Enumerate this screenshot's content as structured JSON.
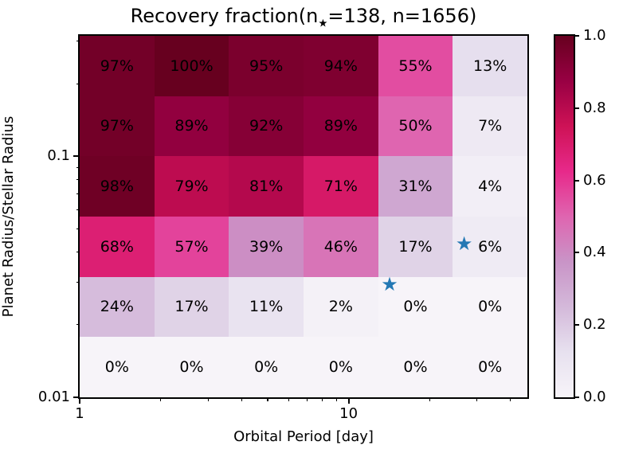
{
  "figure": {
    "background": "#ffffff",
    "text_color": "#000000",
    "title": {
      "prefix": "Recovery fraction(n",
      "subscript": "★",
      "suffix": "=138, n=1656)"
    }
  },
  "chart_data": {
    "type": "heatmap",
    "title": "Recovery fraction(n_★=138, n=1656)",
    "xlabel": "Orbital Period [day]",
    "ylabel": "Planet Radius/Stellar Radius",
    "x_scale": "log",
    "y_scale": "log",
    "x_range": [
      1,
      46.2
    ],
    "y_range": [
      0.01,
      0.3162
    ],
    "grid_shape": [
      6,
      6
    ],
    "column_period_day_edges": [
      1.0,
      1.9,
      3.6,
      6.8,
      12.9,
      24.5,
      46.2
    ],
    "row_radius_ratio_edges_top_to_bottom": [
      0.3162,
      0.1778,
      0.1,
      0.0562,
      0.0316,
      0.0178,
      0.01
    ],
    "values_pct_rows_top_to_bottom": [
      [
        97,
        100,
        95,
        94,
        55,
        13
      ],
      [
        97,
        89,
        92,
        89,
        50,
        7
      ],
      [
        98,
        79,
        81,
        71,
        31,
        4
      ],
      [
        68,
        57,
        39,
        46,
        17,
        6
      ],
      [
        24,
        17,
        11,
        2,
        0,
        0
      ],
      [
        0,
        0,
        0,
        0,
        0,
        0
      ]
    ],
    "cell_labels": [
      [
        "97%",
        "100%",
        "95%",
        "94%",
        "55%",
        "13%"
      ],
      [
        "97%",
        "89%",
        "92%",
        "89%",
        "50%",
        "7%"
      ],
      [
        "98%",
        "79%",
        "81%",
        "71%",
        "31%",
        "4%"
      ],
      [
        "68%",
        "57%",
        "39%",
        "46%",
        "17%",
        "6%"
      ],
      [
        "24%",
        "17%",
        "11%",
        "2%",
        "0%",
        "0%"
      ],
      [
        "0%",
        "0%",
        "0%",
        "0%",
        "0%",
        "0%"
      ]
    ],
    "x_major_ticks": [
      {
        "v": 1,
        "label": "1"
      },
      {
        "v": 10,
        "label": "10"
      }
    ],
    "x_minor_ticks": [
      2,
      3,
      4,
      5,
      6,
      7,
      8,
      9,
      20,
      30,
      40
    ],
    "y_major_ticks": [
      {
        "v": 0.1,
        "label": "0.1"
      },
      {
        "v": 0.01,
        "label": "0.01"
      }
    ],
    "y_minor_ticks": [
      0.02,
      0.03,
      0.04,
      0.05,
      0.06,
      0.07,
      0.08,
      0.09,
      0.2,
      0.3
    ],
    "stars": [
      {
        "period_day": 26.9,
        "radius_ratio": 0.0432
      },
      {
        "period_day": 14.2,
        "radius_ratio": 0.0292
      }
    ],
    "star_color": "#2478b4",
    "star_glyph": "★",
    "legend": "none",
    "grid": "off",
    "colormap": {
      "name": "PuRd",
      "stops": [
        [
          0.0,
          "#f7f4f9"
        ],
        [
          0.125,
          "#e7e1ef"
        ],
        [
          0.25,
          "#d4b9da"
        ],
        [
          0.375,
          "#c994c7"
        ],
        [
          0.5,
          "#df65b0"
        ],
        [
          0.625,
          "#e7298a"
        ],
        [
          0.75,
          "#ce1256"
        ],
        [
          0.875,
          "#980043"
        ],
        [
          1.0,
          "#67001f"
        ]
      ]
    },
    "colorbar": {
      "min": 0.0,
      "max": 1.0,
      "position": "right",
      "ticks": [
        {
          "v": 1.0,
          "label": "1.0"
        },
        {
          "v": 0.8,
          "label": "0.8"
        },
        {
          "v": 0.6,
          "label": "0.6"
        },
        {
          "v": 0.4,
          "label": "0.4"
        },
        {
          "v": 0.2,
          "label": "0.2"
        },
        {
          "v": 0.0,
          "label": "0.0"
        }
      ]
    }
  }
}
